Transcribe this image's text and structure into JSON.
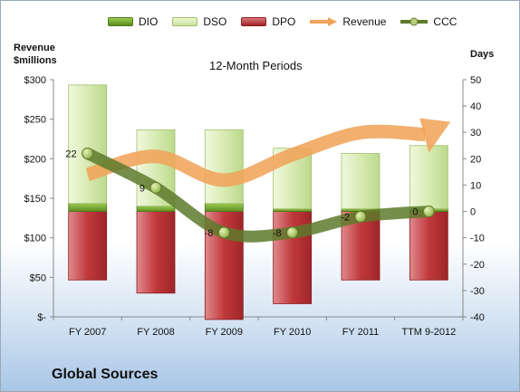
{
  "chart_data": {
    "type": "bar",
    "title": "12-Month Periods",
    "footer": "Global Sources",
    "ylabel_left": [
      "Revenue",
      "$millions"
    ],
    "ylabel_right": "Days",
    "categories": [
      "FY 2007",
      "FY 2008",
      "FY 2009",
      "FY 2010",
      "FY 2011",
      "TTM 9-2012"
    ],
    "left_axis": {
      "ylim": [
        0,
        300
      ],
      "ticks": [
        "$-",
        "$50",
        "$100",
        "$150",
        "$200",
        "$250",
        "$300"
      ]
    },
    "right_axis": {
      "ylim": [
        -40,
        50
      ],
      "ticks": [
        "-40",
        "-30",
        "-20",
        "-10",
        "0",
        "10",
        "20",
        "30",
        "40",
        "50"
      ]
    },
    "series": [
      {
        "name": "DIO",
        "type": "stacked-bar",
        "axis": "right",
        "values": [
          3,
          2,
          3,
          1,
          1,
          1
        ]
      },
      {
        "name": "DSO",
        "type": "stacked-bar",
        "axis": "right",
        "values": [
          45,
          29,
          28,
          23,
          21,
          24
        ]
      },
      {
        "name": "DPO",
        "type": "stacked-bar-negative",
        "axis": "right",
        "values": [
          -26,
          -31,
          -41,
          -35,
          -26,
          -26
        ]
      },
      {
        "name": "Revenue",
        "type": "arrow",
        "axis": "left",
        "values": [
          180,
          203,
          173,
          205,
          233,
          234
        ]
      },
      {
        "name": "CCC",
        "type": "line",
        "axis": "right",
        "values": [
          22,
          9,
          -8,
          -8,
          -2,
          0
        ],
        "labels": [
          "22",
          "9",
          "-8",
          "-8",
          "-2",
          "0"
        ]
      }
    ],
    "colors": {
      "dio": "#6e9c2b",
      "dso": "#d7ebb2",
      "dpo": "#c0393c",
      "revenue": "#f0a45a",
      "ccc": "#5e7a2c"
    },
    "legend": "top",
    "grid": false
  }
}
